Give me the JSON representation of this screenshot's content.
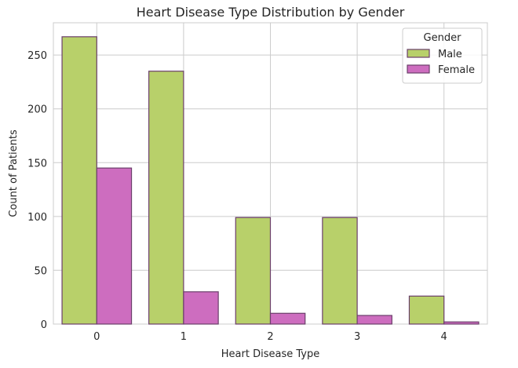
{
  "chart_data": {
    "type": "bar",
    "title": "Heart Disease Type Distribution by Gender",
    "xlabel": "Heart Disease Type",
    "ylabel": "Count of Patients",
    "categories": [
      "0",
      "1",
      "2",
      "3",
      "4"
    ],
    "ylim": [
      0,
      280
    ],
    "yticks": [
      0,
      50,
      100,
      150,
      200,
      250
    ],
    "grid": true,
    "legend": {
      "title": "Gender",
      "placement": "top-right"
    },
    "series": [
      {
        "name": "Male",
        "values": [
          267,
          235,
          99,
          99,
          26
        ],
        "color": "#b8d06a"
      },
      {
        "name": "Female",
        "values": [
          145,
          30,
          10,
          8,
          2
        ],
        "color": "#cd6dbf"
      }
    ],
    "edge_color": "#6b3f6b"
  }
}
